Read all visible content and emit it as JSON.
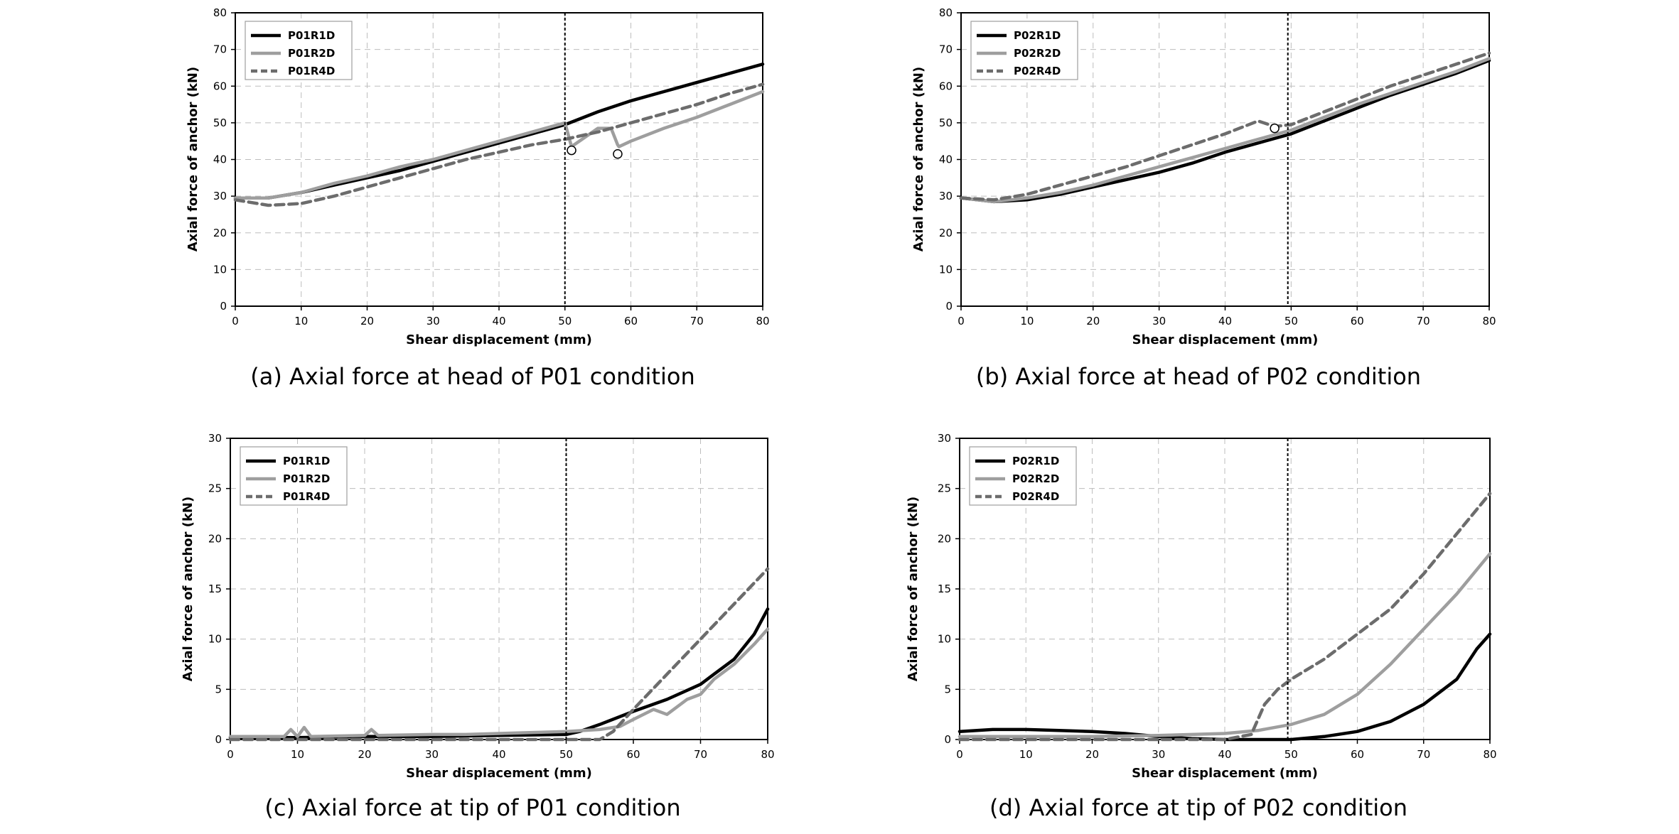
{
  "chart_data": [
    {
      "type": "line",
      "caption": "(a) Axial force at head of P01 condition",
      "xlabel": "Shear displacement (mm)",
      "ylabel": "Axial force of anchor (kN)",
      "xlim": [
        0,
        80
      ],
      "ylim": [
        0,
        80
      ],
      "xticks": [
        0,
        10,
        20,
        30,
        40,
        50,
        60,
        70,
        80
      ],
      "yticks": [
        0,
        10,
        20,
        30,
        40,
        50,
        60,
        70,
        80
      ],
      "grid": true,
      "legend_position": "top-left",
      "reference_line_x": 50,
      "markers": [
        {
          "x": 51,
          "y": 42.5
        },
        {
          "x": 58,
          "y": 41.5
        }
      ],
      "series": [
        {
          "name": "P01R1D",
          "x": [
            0,
            5,
            10,
            15,
            20,
            25,
            30,
            35,
            40,
            45,
            50,
            55,
            60,
            65,
            70,
            75,
            80
          ],
          "y": [
            29.5,
            29.5,
            31,
            33,
            35,
            37,
            39.5,
            42,
            44.5,
            47,
            49.5,
            53,
            56,
            58.5,
            61,
            63.5,
            66
          ]
        },
        {
          "name": "P01R2D",
          "x": [
            0,
            5,
            10,
            15,
            20,
            25,
            30,
            35,
            40,
            45,
            50,
            51,
            55,
            57,
            58,
            58.2,
            60,
            65,
            70,
            75,
            80
          ],
          "y": [
            29.5,
            29.5,
            31,
            33.5,
            35.5,
            38,
            40,
            42.5,
            45,
            47.5,
            50,
            43.5,
            48.5,
            48.5,
            44,
            43.5,
            45,
            48.5,
            51.5,
            55,
            58.5
          ]
        },
        {
          "name": "P01R4D",
          "x": [
            0,
            5,
            10,
            15,
            20,
            25,
            30,
            35,
            40,
            45,
            50,
            55,
            60,
            65,
            70,
            75,
            80
          ],
          "y": [
            29,
            27.5,
            28,
            30,
            32.5,
            35,
            37.5,
            40,
            42,
            44,
            45.5,
            47.5,
            50,
            52.5,
            55,
            58,
            60.5
          ]
        }
      ]
    },
    {
      "type": "line",
      "caption": "(b) Axial force at head of P02 condition",
      "xlabel": "Shear displacement (mm)",
      "ylabel": "Axial force of anchor (kN)",
      "xlim": [
        0,
        80
      ],
      "ylim": [
        0,
        80
      ],
      "xticks": [
        0,
        10,
        20,
        30,
        40,
        50,
        60,
        70,
        80
      ],
      "yticks": [
        0,
        10,
        20,
        30,
        40,
        50,
        60,
        70,
        80
      ],
      "grid": true,
      "legend_position": "top-left",
      "reference_line_x": 49.5,
      "markers": [
        {
          "x": 47.5,
          "y": 48.5
        }
      ],
      "series": [
        {
          "name": "P02R1D",
          "x": [
            0,
            5,
            10,
            15,
            20,
            25,
            30,
            35,
            40,
            45,
            50,
            55,
            60,
            65,
            70,
            75,
            80
          ],
          "y": [
            29.5,
            28.5,
            29,
            30.5,
            32.5,
            34.5,
            36.5,
            39,
            42,
            44.5,
            47,
            50.5,
            54,
            57.5,
            60.5,
            63.5,
            67
          ]
        },
        {
          "name": "P02R2D",
          "x": [
            0,
            5,
            10,
            15,
            20,
            25,
            30,
            35,
            40,
            45,
            50,
            55,
            60,
            65,
            70,
            75,
            80
          ],
          "y": [
            29.5,
            28.5,
            29.5,
            31,
            33,
            35.5,
            38,
            40.5,
            43,
            45.5,
            48,
            51.5,
            55,
            58,
            61,
            64,
            67.5
          ]
        },
        {
          "name": "P02R4D",
          "x": [
            0,
            5,
            10,
            15,
            20,
            25,
            30,
            35,
            40,
            45,
            47.5,
            50,
            55,
            60,
            65,
            70,
            75,
            80
          ],
          "y": [
            29.5,
            29,
            30.5,
            33,
            35.5,
            38,
            41,
            44,
            47,
            50.5,
            49,
            49.5,
            53,
            56.5,
            60,
            63,
            66,
            69
          ]
        }
      ]
    },
    {
      "type": "line",
      "caption": "(c) Axial force at tip of P01 condition",
      "xlabel": "Shear displacement (mm)",
      "ylabel": "Axial force of anchor (kN)",
      "xlim": [
        0,
        80
      ],
      "ylim": [
        0,
        30
      ],
      "xticks": [
        0,
        10,
        20,
        30,
        40,
        50,
        60,
        70,
        80
      ],
      "yticks": [
        0,
        5,
        10,
        15,
        20,
        25,
        30
      ],
      "grid": true,
      "legend_position": "top-left",
      "reference_line_x": 50,
      "markers": [],
      "series": [
        {
          "name": "P01R1D",
          "x": [
            0,
            10,
            20,
            30,
            40,
            50,
            52,
            55,
            60,
            65,
            70,
            72,
            75,
            78,
            80
          ],
          "y": [
            0.2,
            0.2,
            0.3,
            0.3,
            0.4,
            0.5,
            0.8,
            1.5,
            2.8,
            4,
            5.5,
            6.5,
            8,
            10.5,
            13
          ]
        },
        {
          "name": "P01R2D",
          "x": [
            0,
            8,
            9,
            10,
            11,
            12,
            20,
            21,
            22,
            30,
            35,
            40,
            45,
            50,
            55,
            58,
            60,
            63,
            65,
            68,
            70,
            72,
            75,
            78,
            80
          ],
          "y": [
            0.3,
            0.3,
            1,
            0.3,
            1.2,
            0.3,
            0.4,
            1,
            0.4,
            0.5,
            0.5,
            0.6,
            0.7,
            0.8,
            1,
            1.3,
            2,
            3,
            2.5,
            4,
            4.5,
            6,
            7.5,
            9.5,
            11
          ]
        },
        {
          "name": "P01R4D",
          "x": [
            0,
            10,
            20,
            30,
            40,
            50,
            55,
            57,
            60,
            65,
            70,
            75,
            80
          ],
          "y": [
            0,
            0,
            0,
            0,
            0,
            0,
            0,
            0.8,
            3,
            6.5,
            10,
            13.5,
            17
          ]
        }
      ]
    },
    {
      "type": "line",
      "caption": "(d) Axial force at tip of P02 condition",
      "xlabel": "Shear displacement (mm)",
      "ylabel": "Axial force of anchor (kN)",
      "xlim": [
        0,
        80
      ],
      "ylim": [
        0,
        30
      ],
      "xticks": [
        0,
        10,
        20,
        30,
        40,
        50,
        60,
        70,
        80
      ],
      "yticks": [
        0,
        5,
        10,
        15,
        20,
        25,
        30
      ],
      "grid": true,
      "legend_position": "top-left",
      "reference_line_x": 49.5,
      "markers": [],
      "series": [
        {
          "name": "P02R1D",
          "x": [
            0,
            5,
            10,
            15,
            20,
            25,
            30,
            35,
            40,
            45,
            50,
            55,
            60,
            65,
            70,
            75,
            78,
            80
          ],
          "y": [
            0.8,
            1,
            1,
            0.9,
            0.8,
            0.6,
            0.3,
            0.1,
            0,
            0,
            0,
            0.3,
            0.8,
            1.8,
            3.5,
            6,
            9,
            10.5
          ]
        },
        {
          "name": "P02R2D",
          "x": [
            0,
            10,
            20,
            30,
            40,
            45,
            50,
            55,
            60,
            65,
            70,
            75,
            80
          ],
          "y": [
            0.3,
            0.3,
            0.3,
            0.4,
            0.6,
            0.9,
            1.5,
            2.5,
            4.5,
            7.5,
            11,
            14.5,
            18.5
          ]
        },
        {
          "name": "P02R4D",
          "x": [
            0,
            10,
            20,
            30,
            40,
            44,
            46,
            48,
            50,
            55,
            60,
            65,
            70,
            75,
            80
          ],
          "y": [
            0,
            0,
            0,
            0,
            0,
            0.5,
            3.5,
            5,
            6,
            8,
            10.5,
            13,
            16.5,
            20.5,
            24.5
          ]
        }
      ]
    }
  ],
  "colors": {
    "series_1": "#000000",
    "series_2": "#9e9e9e",
    "series_3": "#6c6c6c",
    "grid": "#bdbdbd",
    "reference_line": "#000000"
  }
}
